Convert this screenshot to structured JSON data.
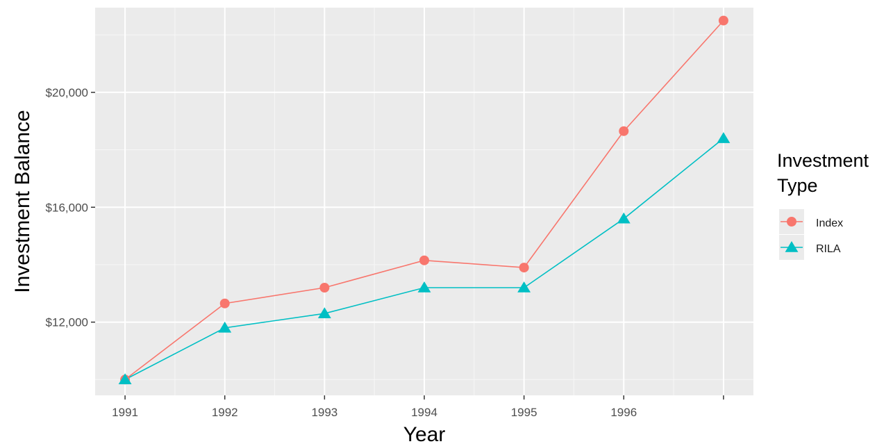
{
  "chart_data": {
    "type": "line",
    "title": "",
    "xlabel": "Year",
    "ylabel": "Investment Balance",
    "x": [
      1991,
      1992,
      1993,
      1994,
      1995,
      1996,
      1997
    ],
    "x_tick_labels": [
      "1991",
      "1992",
      "1993",
      "1994",
      "1995",
      "1996"
    ],
    "xlim": [
      1990.7,
      1997.3
    ],
    "ylim": [
      9450,
      22950
    ],
    "y_ticks": [
      12000,
      16000,
      20000
    ],
    "y_tick_labels": [
      "$12,000",
      "$16,000",
      "$20,000"
    ],
    "grid": true,
    "legend": {
      "title_lines": [
        "Investment",
        "Type"
      ],
      "placement": "right"
    },
    "series": [
      {
        "name": "Index",
        "color": "#F8766D",
        "marker": "circle",
        "values": [
          10000,
          12650,
          13200,
          14150,
          13900,
          18650,
          22500
        ]
      },
      {
        "name": "RILA",
        "color": "#00BFC4",
        "marker": "triangle",
        "values": [
          10000,
          11800,
          12300,
          13200,
          13200,
          15600,
          18400
        ]
      }
    ]
  }
}
